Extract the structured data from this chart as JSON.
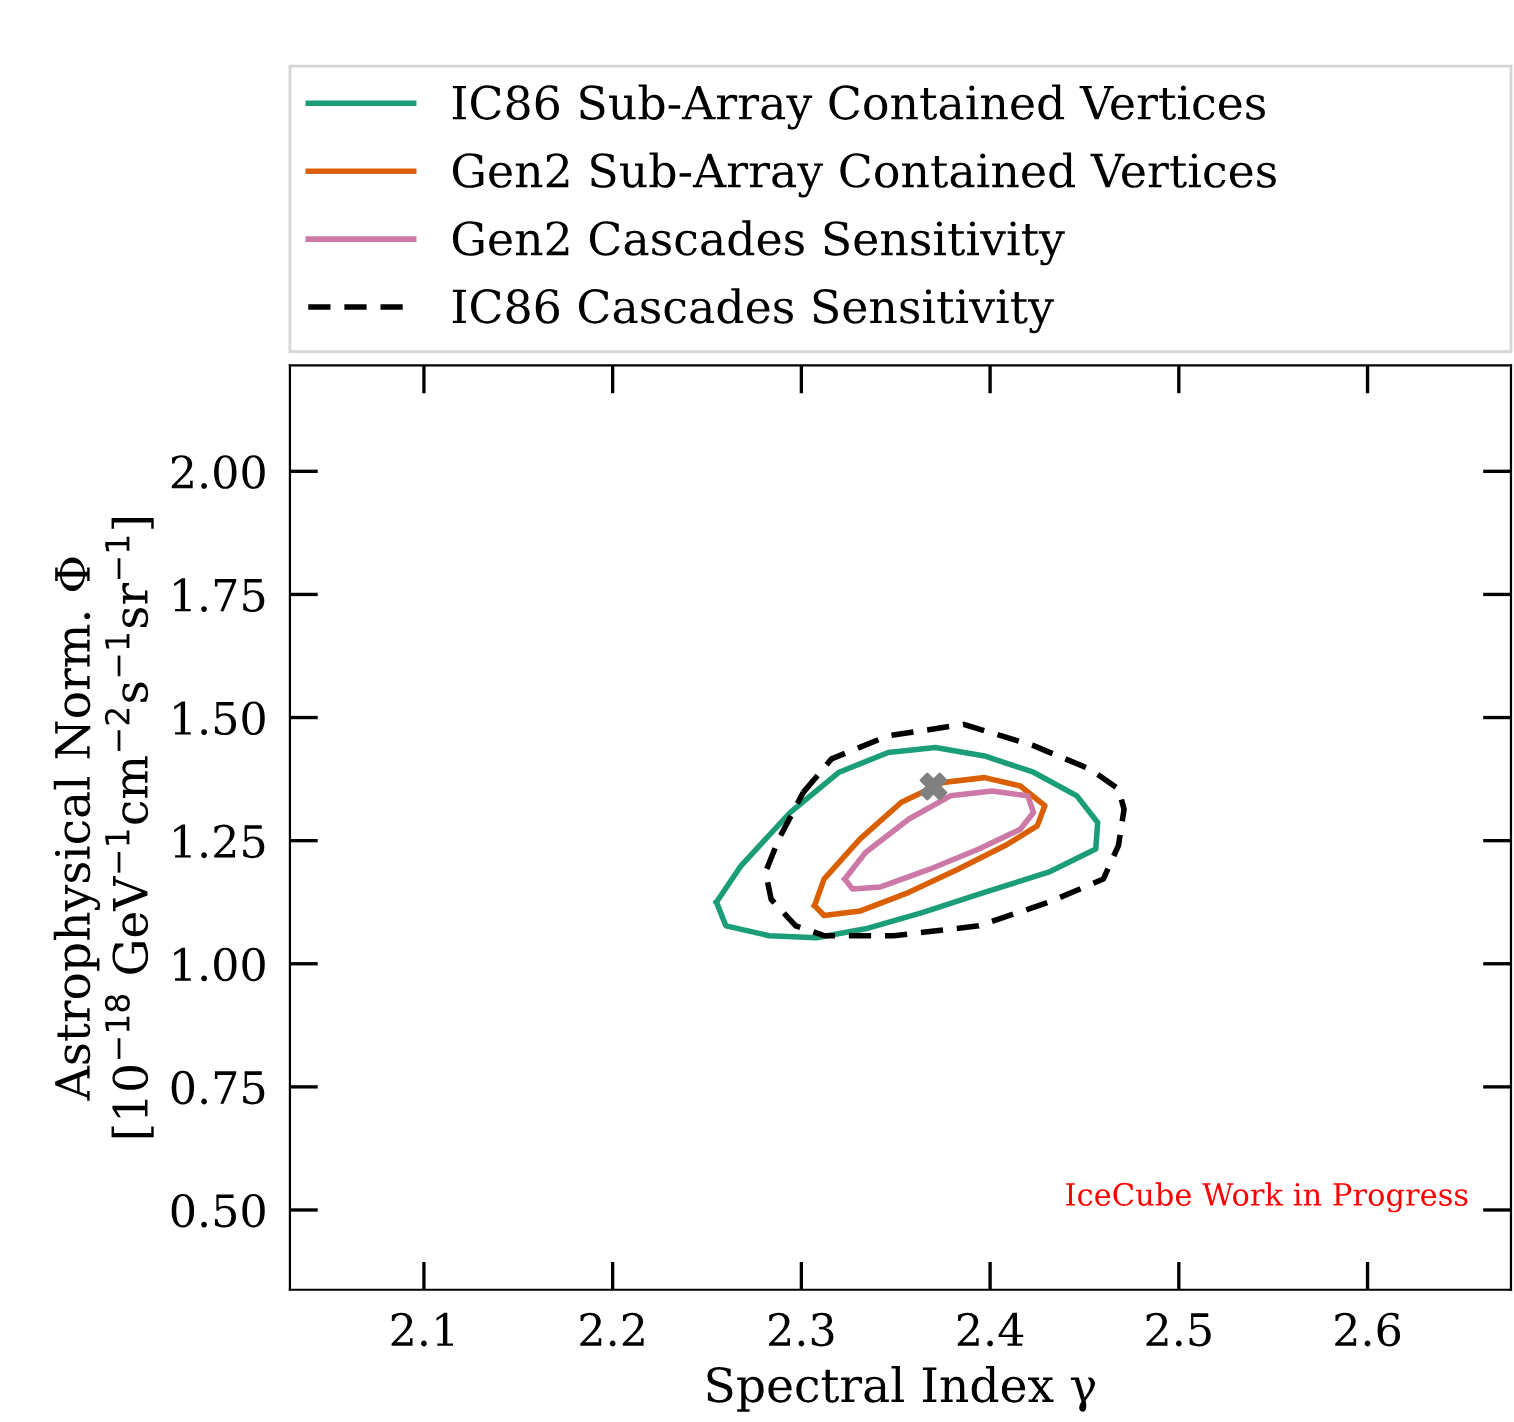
{
  "chart_data": {
    "type": "scatter",
    "xlabel": "Spectral Index γ",
    "ylabel": "Astrophysical Norm. Φ\n[10$^{−18}$ GeV$^{−1}$cm$^{−2}$s$^{−1}$sr$^{−1}$]",
    "xlim": [
      2.029,
      2.676
    ],
    "ylim": [
      0.338,
      2.215
    ],
    "xticks": [
      2.1,
      2.2,
      2.3,
      2.4,
      2.5,
      2.6
    ],
    "yticks": [
      {
        "value": 0.5,
        "label": "0.50"
      },
      {
        "value": 0.75,
        "label": "0.75"
      },
      {
        "value": 1.0,
        "label": "1.00"
      },
      {
        "value": 1.25,
        "label": "1.25"
      },
      {
        "value": 1.5,
        "label": "1.50"
      },
      {
        "value": 1.75,
        "label": "1.75"
      },
      {
        "value": 2.0,
        "label": "2.00"
      }
    ],
    "grid": false,
    "legend": "top",
    "annotations": [
      "IceCube Work in Progress"
    ],
    "series": [
      {
        "type": "line",
        "name": "IC86 Sub-Array Contained Vertices",
        "color": "#1b9e77",
        "line_style": "solid"
      },
      {
        "type": "line",
        "name": "Gen2 Sub-Array Contained Vertices",
        "color": "#d95f02",
        "line_style": "solid"
      },
      {
        "type": "line",
        "name": "Gen2 Cascades Sensitivity",
        "color": "#cc79a7",
        "line_style": "solid"
      },
      {
        "type": "line",
        "name": "IC86 Cascades Sensitivity",
        "color": "#000000",
        "line_style": "dashed"
      },
      {
        "color": "#808080",
        "marker": "cross",
        "x": [
          2.37
        ],
        "values": [
          1.36
        ]
      }
    ]
  }
}
